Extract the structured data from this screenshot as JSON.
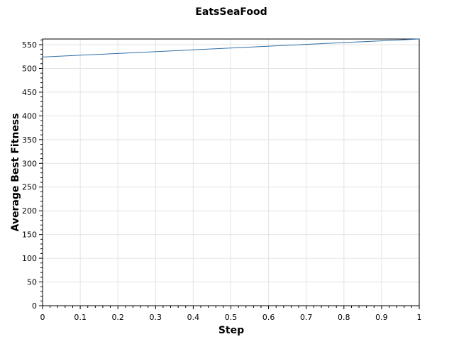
{
  "chart_data": {
    "type": "line",
    "title": "EatsSeaFood",
    "xlabel": "Step",
    "ylabel": "Average Best Fitness",
    "xlim": [
      0,
      1
    ],
    "ylim": [
      0,
      562
    ],
    "x_ticks": [
      0,
      0.1,
      0.2,
      0.3,
      0.4,
      0.5,
      0.6,
      0.7,
      0.8,
      0.9,
      1
    ],
    "x_tick_labels": [
      "0",
      "0.1",
      "0.2",
      "0.3",
      "0.4",
      "0.5",
      "0.6",
      "0.7",
      "0.8",
      "0.9",
      "1"
    ],
    "y_ticks": [
      0,
      50,
      100,
      150,
      200,
      250,
      300,
      350,
      400,
      450,
      500,
      550
    ],
    "y_tick_labels": [
      "0",
      "50",
      "100",
      "150",
      "200",
      "250",
      "300",
      "350",
      "400",
      "450",
      "500",
      "550"
    ],
    "grid": true,
    "series": [
      {
        "name": "Average Best Fitness",
        "color": "#2e6fa6",
        "x": [
          0,
          1
        ],
        "y": [
          524,
          562
        ]
      }
    ]
  }
}
